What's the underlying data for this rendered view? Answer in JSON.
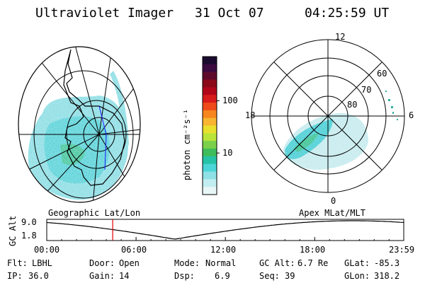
{
  "header": {
    "title": "Ultraviolet Imager",
    "date": "31 Oct 07",
    "time": "04:25:59 UT"
  },
  "colorbar": {
    "unit_label": "photon cm⁻²s⁻¹",
    "ticks": [
      "100",
      "10"
    ],
    "tick_values": [
      100,
      10
    ],
    "colors": [
      "#1a0b2e",
      "#3b0a3f",
      "#5e0b2b",
      "#8a0a1a",
      "#b1061a",
      "#d81b1b",
      "#ef4a1a",
      "#f7861e",
      "#f7b532",
      "#e9e02e",
      "#b9e43a",
      "#7ad04b",
      "#3fbd5c",
      "#26c3a6",
      "#4cd5d6",
      "#8ee1e6",
      "#c2eef1",
      "#e8f6f7"
    ]
  },
  "left_map": {
    "label": "Geographic Lat/Lon"
  },
  "right_map": {
    "label": "Apex MLat/MLT",
    "mlt_labels": {
      "top": "12",
      "left": "18",
      "right": "6",
      "bottom": "0"
    },
    "mlat_labels": [
      "60",
      "70",
      "80"
    ]
  },
  "altitude_plot": {
    "ylabel": "GC Alt",
    "yticks": [
      "9.0",
      "1.8"
    ],
    "xticks": [
      "00:00",
      "06:00",
      "12:00",
      "18:00",
      "23:59"
    ],
    "current_time_hours": 4.43,
    "marker_color": "#e00000"
  },
  "info": {
    "filter": {
      "label": "Flt:",
      "value": "LBHL"
    },
    "ip": {
      "label": "IP:",
      "value": "36.0"
    },
    "door": {
      "label": "Door:",
      "value": "Open"
    },
    "gain": {
      "label": "Gain:",
      "value": "14"
    },
    "mode": {
      "label": "Mode:",
      "value": "Normal"
    },
    "dsp": {
      "label": "Dsp:",
      "value": "6.9"
    },
    "gc_alt": {
      "label": "GC Alt:",
      "value": "6.7 Re"
    },
    "seq": {
      "label": "Seq:",
      "value": "39"
    },
    "glat": {
      "label": "GLat:",
      "value": "-85.3"
    },
    "glon": {
      "label": "GLon:",
      "value": "318.2"
    }
  }
}
